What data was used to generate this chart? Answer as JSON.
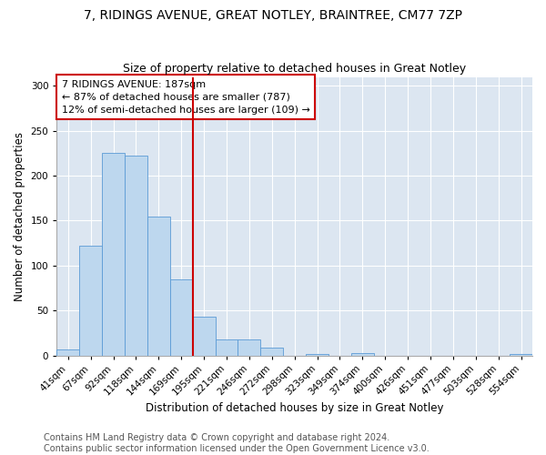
{
  "title": "7, RIDINGS AVENUE, GREAT NOTLEY, BRAINTREE, CM77 7ZP",
  "subtitle": "Size of property relative to detached houses in Great Notley",
  "xlabel": "Distribution of detached houses by size in Great Notley",
  "ylabel": "Number of detached properties",
  "bar_labels": [
    "41sqm",
    "67sqm",
    "92sqm",
    "118sqm",
    "144sqm",
    "169sqm",
    "195sqm",
    "221sqm",
    "246sqm",
    "272sqm",
    "298sqm",
    "323sqm",
    "349sqm",
    "374sqm",
    "400sqm",
    "426sqm",
    "451sqm",
    "477sqm",
    "503sqm",
    "528sqm",
    "554sqm"
  ],
  "bar_values": [
    7,
    122,
    225,
    222,
    155,
    85,
    43,
    18,
    18,
    9,
    0,
    2,
    0,
    3,
    0,
    0,
    0,
    0,
    0,
    0,
    2
  ],
  "bar_color": "#bdd7ee",
  "bar_edgecolor": "#5b9bd5",
  "vline_color": "#cc0000",
  "vline_index": 5.5,
  "annotation_text": "7 RIDINGS AVENUE: 187sqm\n← 87% of detached houses are smaller (787)\n12% of semi-detached houses are larger (109) →",
  "annotation_box_edgecolor": "#cc0000",
  "ylim": [
    0,
    310
  ],
  "yticks": [
    0,
    50,
    100,
    150,
    200,
    250,
    300
  ],
  "background_color": "#dce6f1",
  "footer_text": "Contains HM Land Registry data © Crown copyright and database right 2024.\nContains public sector information licensed under the Open Government Licence v3.0.",
  "title_fontsize": 10,
  "subtitle_fontsize": 9,
  "axis_label_fontsize": 8.5,
  "tick_fontsize": 7.5,
  "footer_fontsize": 7,
  "annotation_fontsize": 8
}
